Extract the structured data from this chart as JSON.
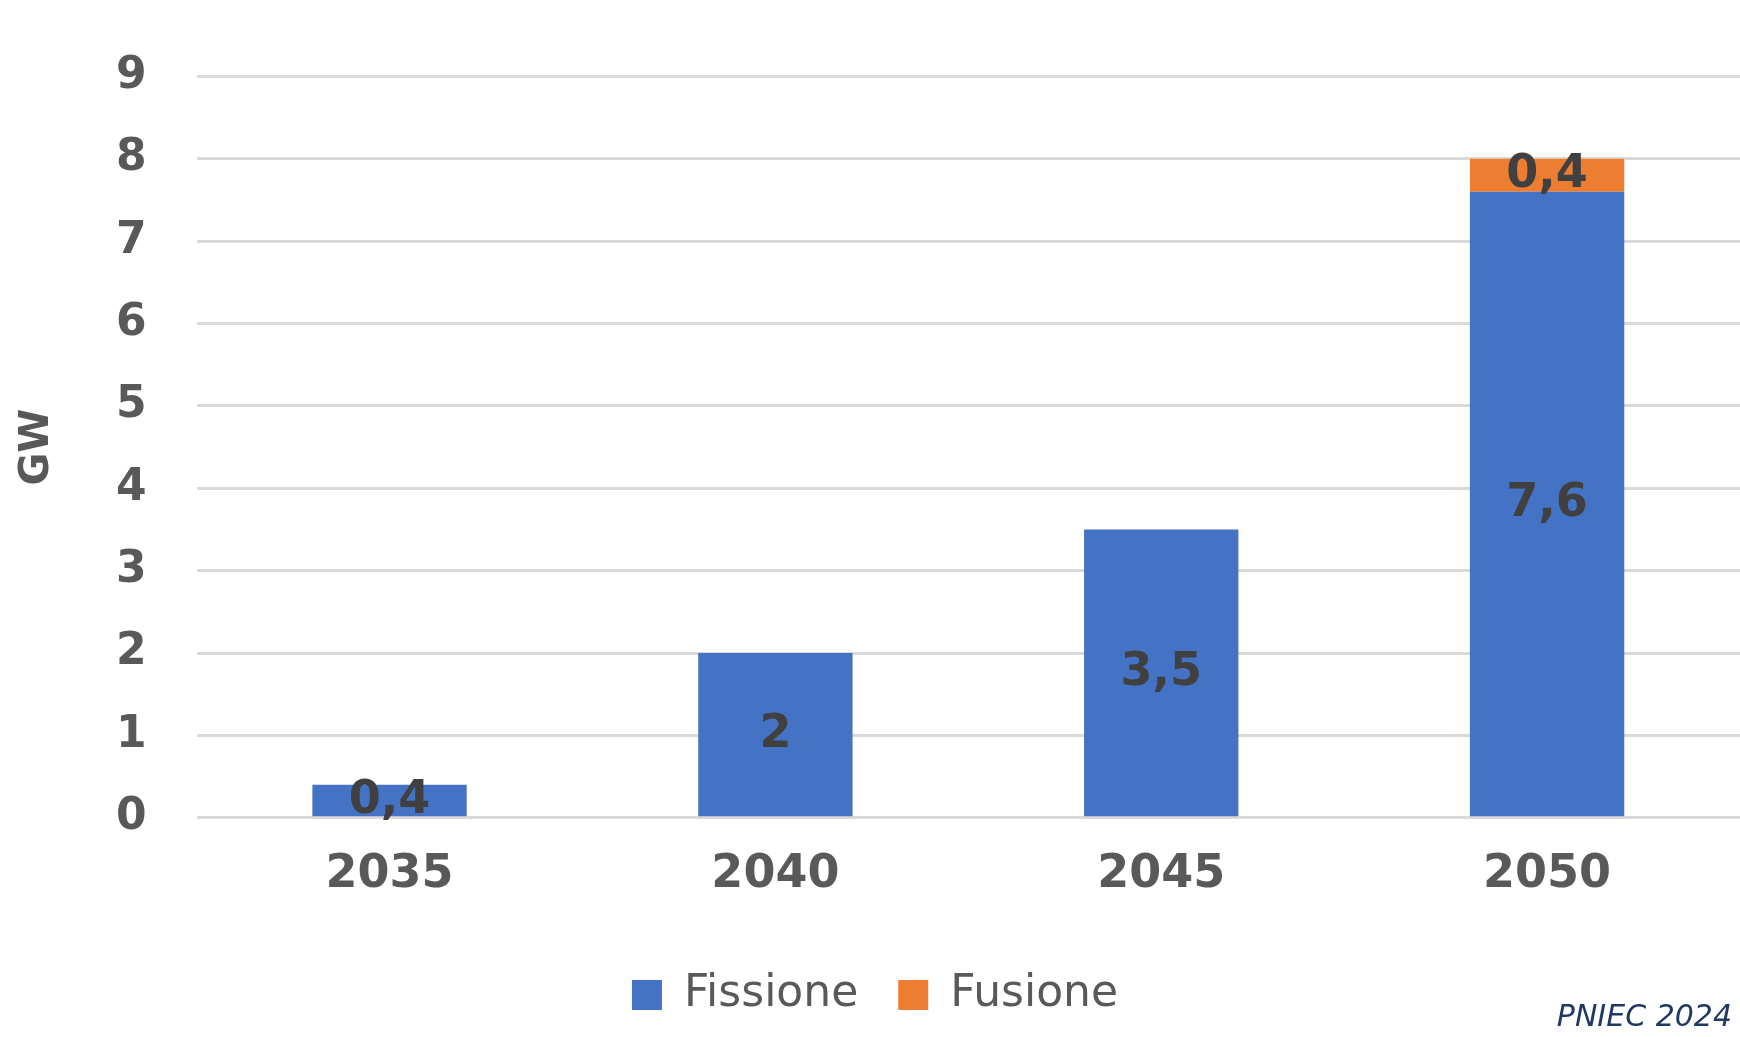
{
  "chart_data": {
    "type": "bar",
    "stacked": true,
    "categories": [
      "2035",
      "2040",
      "2045",
      "2050"
    ],
    "series": [
      {
        "name": "Fissione",
        "color": "#4472c4",
        "values": [
          0.4,
          2,
          3.5,
          7.6
        ],
        "value_labels": [
          "0,4",
          "2",
          "3,5",
          "7,6"
        ]
      },
      {
        "name": "Fusione",
        "color": "#ed7d31",
        "values": [
          null,
          null,
          null,
          0.4
        ],
        "value_labels": [
          null,
          null,
          null,
          "0,4"
        ]
      }
    ],
    "ylabel": "GW",
    "ylim": [
      0,
      9
    ],
    "yticks": [
      0,
      1,
      2,
      3,
      4,
      5,
      6,
      7,
      8,
      9
    ],
    "grid": "y",
    "legend": "bottom",
    "annotations": [
      "PNIEC 2024"
    ]
  }
}
